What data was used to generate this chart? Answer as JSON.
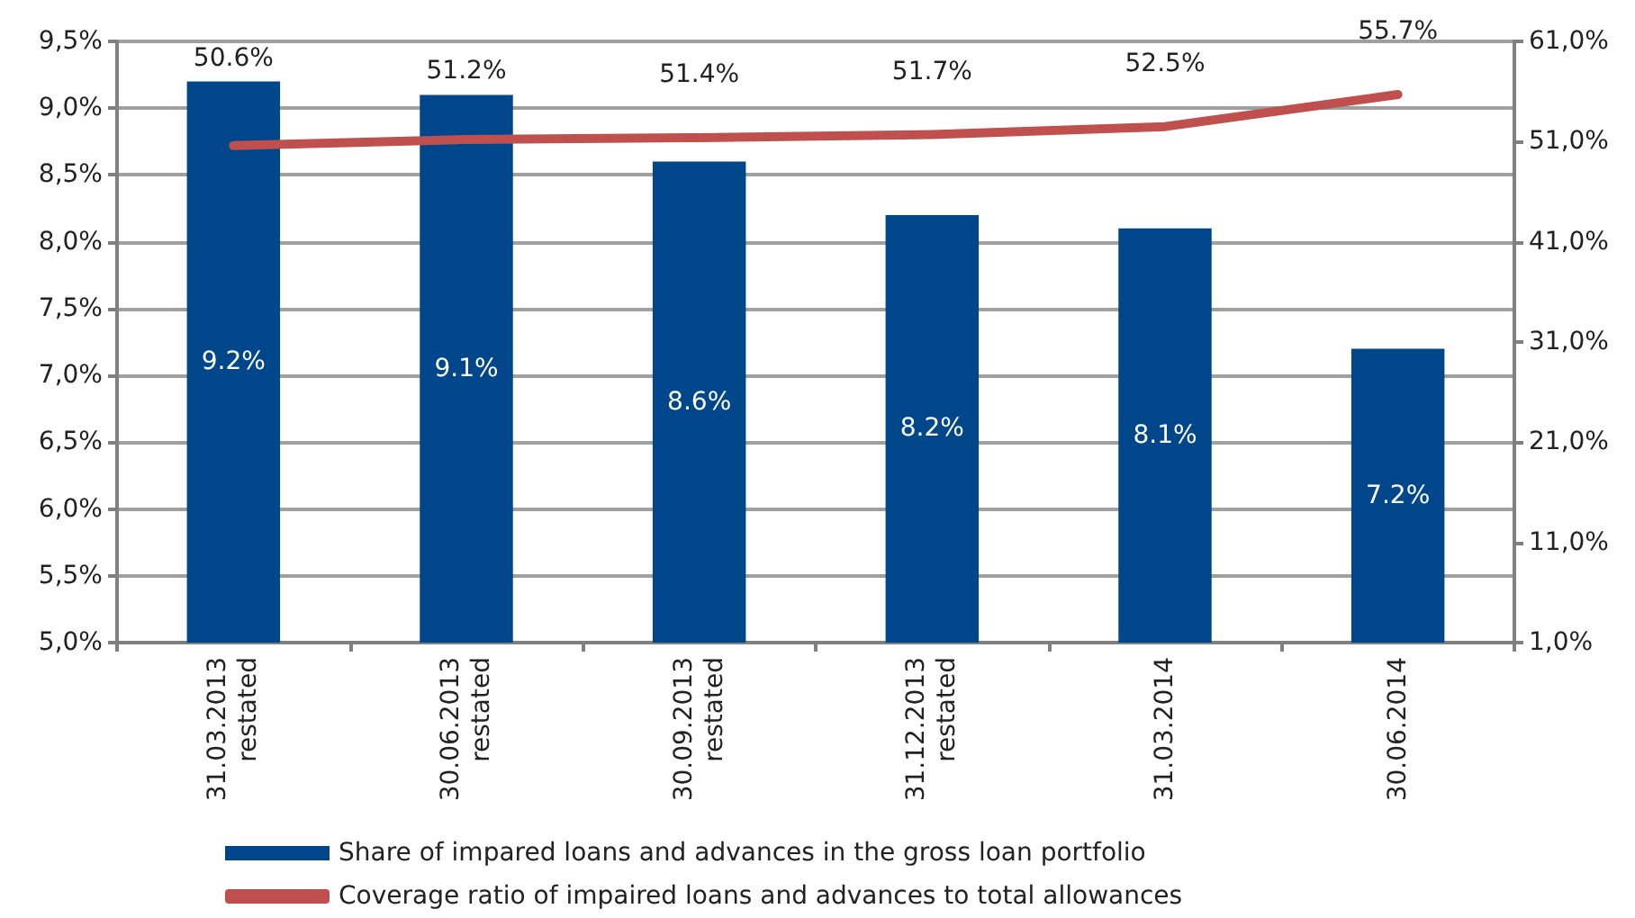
{
  "chart_data": {
    "type": "bar",
    "categories": [
      "31.03.2013\nrestated",
      "30.06.2013\nrestated",
      "30.09.2013\nrestated",
      "31.12.2013\nrestated",
      "31.03.2014",
      "30.06.2014"
    ],
    "series": [
      {
        "name": "Share of impared loans and advances in the gross loan portfolio",
        "color": "#00468b",
        "values": [
          9.2,
          9.1,
          8.6,
          8.2,
          8.1,
          7.2
        ],
        "value_labels": [
          "9.2%",
          "9.1%",
          "8.6%",
          "8.2%",
          "8.1%",
          "7.2%"
        ]
      },
      {
        "type": "line",
        "axis": "y2",
        "name": "Coverage ratio of impaired loans and advances to total allowances",
        "color": "#c0504d",
        "values": [
          50.6,
          51.2,
          51.4,
          51.7,
          52.5,
          55.7
        ],
        "value_labels": [
          "50.6%",
          "51.2%",
          "51.4%",
          "51.7%",
          "52.5%",
          "55.7%"
        ]
      }
    ],
    "ylim": [
      5,
      9.5
    ],
    "yticks": [
      {
        "value": 5,
        "label": "5,0%"
      },
      {
        "value": 5.5,
        "label": "5,5%"
      },
      {
        "value": 6,
        "label": "6,0%"
      },
      {
        "value": 6.5,
        "label": "6,5%"
      },
      {
        "value": 7,
        "label": "7,0%"
      },
      {
        "value": 7.5,
        "label": "7,5%"
      },
      {
        "value": 8,
        "label": "8,0%"
      },
      {
        "value": 8.5,
        "label": "8,5%"
      },
      {
        "value": 9,
        "label": "9,0%"
      },
      {
        "value": 9.5,
        "label": "9,5%"
      }
    ],
    "y2lim": [
      1,
      61
    ],
    "y2ticks": [
      {
        "value": 1,
        "label": "1,0%"
      },
      {
        "value": 11,
        "label": "11,0%"
      },
      {
        "value": 21,
        "label": "21,0%"
      },
      {
        "value": 31,
        "label": "31,0%"
      },
      {
        "value": 41,
        "label": "41,0%"
      },
      {
        "value": 51,
        "label": "51,0%"
      },
      {
        "value": 61,
        "label": "61,0%"
      }
    ],
    "grid": "y",
    "legend": "bottom",
    "marker": "none",
    "line_style": "solid"
  }
}
